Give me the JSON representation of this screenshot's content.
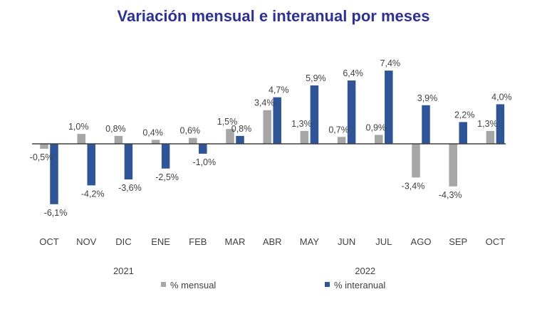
{
  "chart_data": {
    "type": "bar",
    "title": "Variación mensual e interanual por meses",
    "xlabel": "",
    "ylabel": "",
    "categories": [
      "OCT",
      "NOV",
      "DIC",
      "ENE",
      "FEB",
      "MAR",
      "ABR",
      "MAY",
      "JUN",
      "JUL",
      "AGO",
      "SEP",
      "OCT"
    ],
    "year_labels": [
      {
        "label": "2021",
        "under_category_index": 2
      },
      {
        "label": "2022",
        "under_category_index": 8.5
      }
    ],
    "series": [
      {
        "name": "% mensual",
        "color": "#a6a6a6",
        "values": [
          -0.5,
          1.0,
          0.8,
          0.4,
          0.6,
          1.5,
          3.4,
          1.3,
          0.7,
          0.9,
          -3.4,
          -4.3,
          1.3
        ],
        "labels": [
          "-0,5%",
          "1,0%",
          "0,8%",
          "0,4%",
          "0,6%",
          "1,5%",
          "3,4%",
          "1,3%",
          "0,7%",
          "0,9%",
          "-3,4%",
          "-4,3%",
          "1,3%"
        ]
      },
      {
        "name": "% interanual",
        "color": "#2f5597",
        "values": [
          -6.1,
          -4.2,
          -3.6,
          -2.5,
          -1.0,
          0.8,
          4.7,
          5.9,
          6.4,
          7.4,
          3.9,
          2.2,
          4.0
        ],
        "labels": [
          "-6,1%",
          "-4,2%",
          "-3,6%",
          "-2,5%",
          "-1,0%",
          "0,8%",
          "4,7%",
          "5,9%",
          "6,4%",
          "7,4%",
          "3,9%",
          "2,2%",
          "4,0%"
        ]
      }
    ],
    "ylim": [
      -6.5,
      8
    ],
    "grid": false,
    "legend": {
      "placement": "bottom",
      "entries": [
        "% mensual",
        "% interanual"
      ]
    },
    "title_color": "#2e3192"
  }
}
